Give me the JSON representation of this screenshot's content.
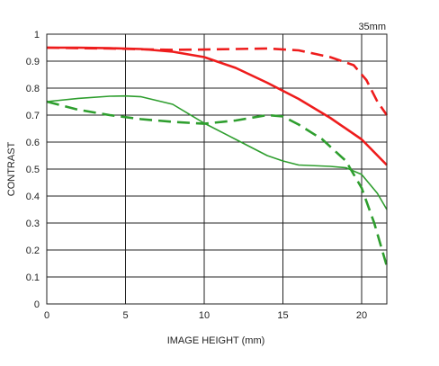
{
  "chart_data": {
    "type": "line",
    "title": "",
    "corner_label": "35mm",
    "xlabel": "IMAGE HEIGHT (mm)",
    "ylabel": "CONTRAST",
    "xlim": [
      0,
      21.6
    ],
    "ylim": [
      0,
      1
    ],
    "x_ticks": [
      0,
      5,
      10,
      15,
      20
    ],
    "x_tick_labels": [
      "0",
      "5",
      "10",
      "15",
      "20"
    ],
    "y_ticks": [
      0,
      0.1,
      0.2,
      0.3,
      0.4,
      0.5,
      0.6,
      0.7,
      0.8,
      0.9,
      1
    ],
    "y_tick_labels": [
      "0",
      "0.1",
      "0.2",
      "0.3",
      "0.4",
      "0.5",
      "0.6",
      "0.7",
      "0.8",
      "0.9",
      "1"
    ],
    "grid": true,
    "legend": "none",
    "series": [
      {
        "color": "#ee1c1c",
        "dash": "solid",
        "points": [
          [
            0,
            0.95
          ],
          [
            2,
            0.95
          ],
          [
            4,
            0.948
          ],
          [
            6,
            0.945
          ],
          [
            8,
            0.935
          ],
          [
            10,
            0.915
          ],
          [
            12,
            0.875
          ],
          [
            14,
            0.82
          ],
          [
            16,
            0.76
          ],
          [
            18,
            0.69
          ],
          [
            20,
            0.61
          ],
          [
            21.6,
            0.515
          ]
        ]
      },
      {
        "color": "#ee1c1c",
        "dash": "dashed",
        "points": [
          [
            0,
            0.95
          ],
          [
            2,
            0.948
          ],
          [
            4,
            0.947
          ],
          [
            6,
            0.944
          ],
          [
            8,
            0.942
          ],
          [
            10,
            0.943
          ],
          [
            12,
            0.945
          ],
          [
            14,
            0.947
          ],
          [
            16,
            0.94
          ],
          [
            18,
            0.915
          ],
          [
            19.5,
            0.885
          ],
          [
            20.3,
            0.83
          ],
          [
            21,
            0.75
          ],
          [
            21.6,
            0.7
          ]
        ]
      },
      {
        "color": "#2e9e2e",
        "dash": "solid",
        "points": [
          [
            0,
            0.75
          ],
          [
            2,
            0.762
          ],
          [
            4,
            0.77
          ],
          [
            5,
            0.771
          ],
          [
            6,
            0.768
          ],
          [
            8,
            0.74
          ],
          [
            10,
            0.67
          ],
          [
            12,
            0.61
          ],
          [
            14,
            0.55
          ],
          [
            15,
            0.53
          ],
          [
            16,
            0.515
          ],
          [
            18,
            0.51
          ],
          [
            19,
            0.505
          ],
          [
            20,
            0.48
          ],
          [
            21,
            0.41
          ],
          [
            21.6,
            0.35
          ]
        ]
      },
      {
        "color": "#2e9e2e",
        "dash": "dashed",
        "points": [
          [
            0,
            0.75
          ],
          [
            2,
            0.72
          ],
          [
            4,
            0.7
          ],
          [
            6,
            0.685
          ],
          [
            8,
            0.675
          ],
          [
            10,
            0.668
          ],
          [
            12,
            0.68
          ],
          [
            14,
            0.7
          ],
          [
            15,
            0.695
          ],
          [
            16,
            0.665
          ],
          [
            17.5,
            0.61
          ],
          [
            19,
            0.53
          ],
          [
            20,
            0.43
          ],
          [
            20.8,
            0.3
          ],
          [
            21.6,
            0.14
          ]
        ]
      }
    ]
  }
}
